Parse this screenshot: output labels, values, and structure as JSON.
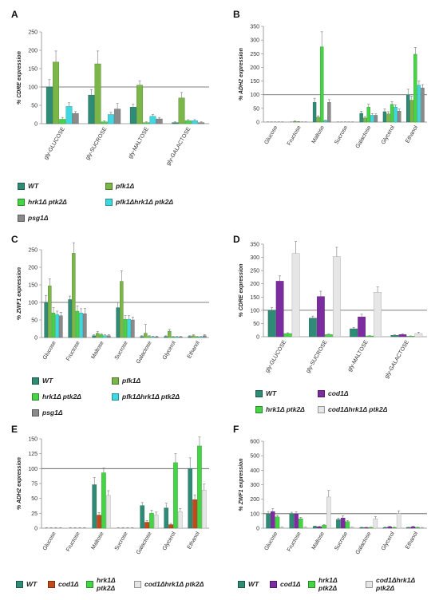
{
  "panels": [
    {
      "letter": "A",
      "ylabel": "% CDRE expression",
      "ylim": [
        0,
        250
      ],
      "yticks": [
        0,
        50,
        100,
        150,
        200,
        250
      ],
      "refline": 100,
      "xlabel_angle": -60
    },
    {
      "letter": "B",
      "ylabel": "% ADH2 expression",
      "ylim": [
        0,
        350
      ],
      "yticks": [
        0,
        50,
        100,
        150,
        200,
        250,
        300,
        350
      ],
      "refline": 100,
      "xlabel_angle": -60
    },
    {
      "letter": "C",
      "ylabel": "% ZWF1 expression",
      "ylim": [
        0,
        250
      ],
      "yticks": [
        0,
        50,
        100,
        150,
        200,
        250
      ],
      "refline": 100,
      "xlabel_angle": -60
    },
    {
      "letter": "D",
      "ylabel": "% CDRE expression",
      "ylim": [
        0,
        350
      ],
      "yticks": [
        0,
        50,
        100,
        150,
        200,
        250,
        300,
        350
      ],
      "refline": 100,
      "xlabel_angle": -60
    },
    {
      "letter": "E",
      "ylabel": "% ADH2 expression",
      "ylim": [
        0,
        150
      ],
      "yticks": [
        0,
        25,
        50,
        75,
        100,
        125,
        150
      ],
      "refline": 100,
      "xlabel_angle": -60
    },
    {
      "letter": "F",
      "ylabel": "% ZWF1 expression",
      "ylim": [
        0,
        600
      ],
      "yticks": [
        0,
        100,
        200,
        300,
        400,
        500,
        600
      ],
      "refline": 100,
      "xlabel_angle": -60
    }
  ],
  "legends": [
    {
      "panel": "A-B",
      "items": [
        {
          "label": "WT",
          "color": "#2e8b75"
        },
        {
          "label": "pfk1Δ",
          "color": "#7ab648"
        },
        {
          "label": "hrk1Δ ptk2Δ",
          "color": "#44d444"
        },
        {
          "label": "pfk1Δhrk1Δ ptk2Δ",
          "color": "#40d8e0"
        },
        {
          "label": "psg1Δ",
          "color": "#8a8a8a"
        }
      ]
    },
    {
      "panel": "C",
      "items": [
        {
          "label": "WT",
          "color": "#2e8b75"
        },
        {
          "label": "pfk1Δ",
          "color": "#7ab648"
        },
        {
          "label": "hrk1Δ ptk2Δ",
          "color": "#44d444"
        },
        {
          "label": "pfk1Δhrk1Δ ptk2Δ",
          "color": "#40d8e0"
        },
        {
          "label": "psg1Δ",
          "color": "#8a8a8a"
        }
      ]
    },
    {
      "panel": "D",
      "items": [
        {
          "label": "WT",
          "color": "#2e8b75"
        },
        {
          "label": "cod1Δ",
          "color": "#7b2c9e"
        },
        {
          "label": "hrk1Δ ptk2Δ",
          "color": "#44d444"
        },
        {
          "label": "cod1Δhrk1Δ ptk2Δ",
          "color": "#e6e6e6"
        }
      ]
    },
    {
      "panel": "E",
      "items": [
        {
          "label": "WT",
          "color": "#2e8b75"
        },
        {
          "label": "cod1Δ",
          "color": "#c04a1c"
        },
        {
          "label": "hrk1Δ\nptk2Δ",
          "color": "#44d444"
        },
        {
          "label": "cod1Δhrk1Δ ptk2Δ",
          "color": "#e6e6e6"
        }
      ]
    },
    {
      "panel": "F",
      "items": [
        {
          "label": "WT",
          "color": "#2e8b75"
        },
        {
          "label": "cod1Δ",
          "color": "#7b2c9e"
        },
        {
          "label": "hrk1Δ\nptk2Δ",
          "color": "#44d444"
        },
        {
          "label": "cod1Δhrk1Δ\nptk2Δ",
          "color": "#e6e6e6"
        }
      ]
    }
  ],
  "chart_data": [
    {
      "panel": "A",
      "type": "bar",
      "ylabel": "% CDRE expression",
      "ylim": [
        0,
        250
      ],
      "categories": [
        "gly-GLUCOSE",
        "gly-SUCROSE",
        "gly-MALTOSE",
        "gly-GALACTOSE"
      ],
      "series": [
        {
          "name": "WT",
          "color": "#2e8b75",
          "values": [
            100,
            78,
            45,
            3
          ],
          "errors": [
            20,
            15,
            8,
            2
          ]
        },
        {
          "name": "pfk1Δ",
          "color": "#7ab648",
          "values": [
            168,
            163,
            105,
            70
          ],
          "errors": [
            30,
            35,
            12,
            15
          ]
        },
        {
          "name": "hrk1Δ ptk2Δ",
          "color": "#44d444",
          "values": [
            12,
            5,
            3,
            8
          ],
          "errors": [
            5,
            3,
            2,
            3
          ]
        },
        {
          "name": "pfk1Δhrk1Δ ptk2Δ",
          "color": "#40d8e0",
          "values": [
            47,
            25,
            20,
            8
          ],
          "errors": [
            10,
            6,
            5,
            3
          ]
        },
        {
          "name": "psg1Δ",
          "color": "#8a8a8a",
          "values": [
            28,
            40,
            13,
            3
          ],
          "errors": [
            5,
            15,
            4,
            2
          ]
        }
      ]
    },
    {
      "panel": "B",
      "type": "bar",
      "ylabel": "% ADH2 expression",
      "ylim": [
        0,
        350
      ],
      "categories": [
        "Glucose",
        "Fructose",
        "Maltose",
        "Sucrose",
        "Galactose",
        "Glycerol",
        "Ethanol"
      ],
      "series": [
        {
          "name": "WT",
          "color": "#2e8b75",
          "values": [
            0,
            0,
            72,
            0,
            32,
            38,
            100
          ],
          "errors": [
            1,
            1,
            15,
            1,
            8,
            10,
            20
          ]
        },
        {
          "name": "pfk1Δ",
          "color": "#7ab648",
          "values": [
            0,
            2,
            18,
            0,
            15,
            30,
            80
          ],
          "errors": [
            1,
            2,
            5,
            1,
            5,
            8,
            15
          ]
        },
        {
          "name": "hrk1Δ ptk2Δ",
          "color": "#44d444",
          "values": [
            0,
            1,
            275,
            0,
            55,
            65,
            248
          ],
          "errors": [
            1,
            1,
            55,
            1,
            10,
            10,
            25
          ]
        },
        {
          "name": "pfk1Δhrk1Δ ptk2Δ",
          "color": "#40d8e0",
          "values": [
            0,
            0,
            5,
            0,
            25,
            55,
            135
          ],
          "errors": [
            1,
            1,
            2,
            1,
            6,
            8,
            15
          ]
        },
        {
          "name": "psg1Δ",
          "color": "#8a8a8a",
          "values": [
            0,
            0,
            72,
            0,
            25,
            40,
            125
          ],
          "errors": [
            1,
            1,
            10,
            1,
            5,
            8,
            12
          ]
        }
      ]
    },
    {
      "panel": "C",
      "type": "bar",
      "ylabel": "% ZWF1 expression",
      "ylim": [
        0,
        250
      ],
      "categories": [
        "Glucose",
        "Fructose",
        "Maltose",
        "Sucrose",
        "Galactose",
        "Glycerol",
        "Ethanol"
      ],
      "series": [
        {
          "name": "WT",
          "color": "#2e8b75",
          "values": [
            100,
            108,
            5,
            85,
            3,
            3,
            3
          ],
          "errors": [
            20,
            10,
            3,
            15,
            2,
            2,
            2
          ]
        },
        {
          "name": "pfk1Δ",
          "color": "#7ab648",
          "values": [
            147,
            240,
            12,
            160,
            12,
            18,
            5
          ],
          "errors": [
            20,
            30,
            5,
            30,
            25,
            5,
            3
          ]
        },
        {
          "name": "hrk1Δ ptk2Δ",
          "color": "#44d444",
          "values": [
            70,
            75,
            8,
            52,
            3,
            2,
            2
          ],
          "errors": [
            15,
            15,
            3,
            10,
            2,
            1,
            1
          ]
        },
        {
          "name": "pfk1Δhrk1Δ ptk2Δ",
          "color": "#40d8e0",
          "values": [
            65,
            70,
            5,
            52,
            2,
            2,
            2
          ],
          "errors": [
            10,
            12,
            3,
            10,
            2,
            1,
            1
          ]
        },
        {
          "name": "psg1Δ",
          "color": "#8a8a8a",
          "values": [
            62,
            68,
            5,
            50,
            2,
            2,
            5
          ],
          "errors": [
            10,
            15,
            3,
            8,
            2,
            1,
            3
          ]
        }
      ]
    },
    {
      "panel": "D",
      "type": "bar",
      "ylabel": "% CDRE expression",
      "ylim": [
        0,
        350
      ],
      "categories": [
        "gly-GLUCOSE",
        "gly-SUCROSE",
        "gly-MALTOSE",
        "gly-GALACTOSE"
      ],
      "series": [
        {
          "name": "WT",
          "color": "#2e8b75",
          "values": [
            100,
            70,
            30,
            5
          ],
          "errors": [
            10,
            8,
            5,
            2
          ]
        },
        {
          "name": "cod1Δ",
          "color": "#7b2c9e",
          "values": [
            210,
            152,
            75,
            8
          ],
          "errors": [
            20,
            20,
            10,
            3
          ]
        },
        {
          "name": "hrk1Δ ptk2Δ",
          "color": "#44d444",
          "values": [
            12,
            8,
            3,
            2
          ],
          "errors": [
            3,
            2,
            1,
            1
          ]
        },
        {
          "name": "cod1Δhrk1Δ ptk2Δ",
          "color": "#e6e6e6",
          "values": [
            315,
            303,
            168,
            12
          ],
          "errors": [
            45,
            35,
            20,
            5
          ]
        }
      ]
    },
    {
      "panel": "E",
      "type": "bar",
      "ylabel": "% ADH2 expression",
      "ylim": [
        0,
        150
      ],
      "categories": [
        "Glucose",
        "Fructose",
        "Maltose",
        "Sucrose",
        "Galactose",
        "Glycerol",
        "Ethanol"
      ],
      "series": [
        {
          "name": "WT",
          "color": "#2e8b75",
          "values": [
            0,
            0,
            73,
            0,
            38,
            34,
            100
          ],
          "errors": [
            1,
            1,
            12,
            1,
            5,
            8,
            18
          ]
        },
        {
          "name": "cod1Δ",
          "color": "#c04a1c",
          "values": [
            0,
            0,
            22,
            0,
            10,
            6,
            48
          ],
          "errors": [
            1,
            1,
            4,
            1,
            3,
            2,
            8
          ]
        },
        {
          "name": "hrk1Δ ptk2Δ",
          "color": "#44d444",
          "values": [
            0,
            0,
            93,
            0,
            25,
            110,
            138
          ],
          "errors": [
            1,
            1,
            8,
            1,
            5,
            15,
            15
          ]
        },
        {
          "name": "cod1Δhrk1Δ ptk2Δ",
          "color": "#e6e6e6",
          "values": [
            0,
            0,
            55,
            0,
            22,
            28,
            64
          ],
          "errors": [
            1,
            1,
            8,
            1,
            5,
            5,
            10
          ]
        }
      ]
    },
    {
      "panel": "F",
      "type": "bar",
      "ylabel": "% ZWF1 expression",
      "ylim": [
        0,
        600
      ],
      "categories": [
        "Glucose",
        "Fructose",
        "Maltose",
        "Sucrose",
        "Galactose",
        "Glycerol",
        "Ethanol"
      ],
      "series": [
        {
          "name": "WT",
          "color": "#2e8b75",
          "values": [
            100,
            100,
            12,
            60,
            5,
            5,
            5
          ],
          "errors": [
            15,
            10,
            3,
            10,
            2,
            2,
            2
          ]
        },
        {
          "name": "cod1Δ",
          "color": "#7b2c9e",
          "values": [
            115,
            98,
            10,
            70,
            5,
            10,
            10
          ],
          "errors": [
            20,
            15,
            3,
            15,
            2,
            3,
            3
          ]
        },
        {
          "name": "hrk1Δ ptk2Δ",
          "color": "#44d444",
          "values": [
            78,
            65,
            20,
            45,
            5,
            5,
            5
          ],
          "errors": [
            10,
            10,
            5,
            8,
            2,
            2,
            2
          ]
        },
        {
          "name": "cod1Δhrk1Δ ptk2Δ",
          "color": "#e6e6e6",
          "values": [
            5,
            5,
            215,
            5,
            65,
            100,
            3
          ],
          "errors": [
            2,
            2,
            45,
            2,
            15,
            20,
            2
          ]
        }
      ]
    }
  ]
}
